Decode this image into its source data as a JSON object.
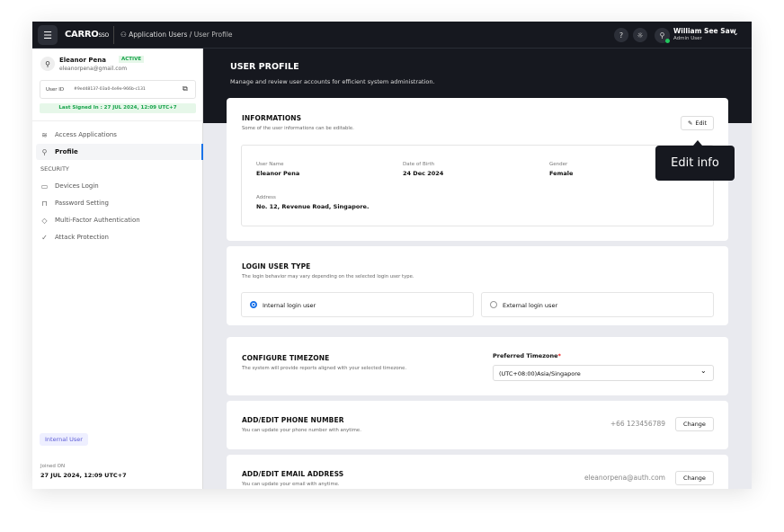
{
  "header": {
    "brand": "CARRO",
    "brand_suffix": "SSO",
    "breadcrumb": [
      "Application Users",
      "User Profile"
    ],
    "user_name": "William See Saw",
    "user_role": "Admin User",
    "online_color": "#22c55e"
  },
  "sidebar": {
    "name": "Eleanor Pena",
    "status": "ACTIVE",
    "email": "eleanorpena@gmail.com",
    "user_id_label": "User ID",
    "user_id": "#9ed48137-03a0-4e9e-966b-c131",
    "last_signed": "Last Signed In : 27 JUL 2024, 12:09 UTC+7",
    "items": [
      {
        "label": "Access Applications",
        "icon": "layers-icon"
      },
      {
        "label": "Profile",
        "icon": "user-icon",
        "active": true
      }
    ],
    "section": "SECURITY",
    "security_items": [
      {
        "label": "Devices Login",
        "icon": "laptop-icon"
      },
      {
        "label": "Password Setting",
        "icon": "lock-icon"
      },
      {
        "label": "Multi-Factor Authentication",
        "icon": "shield-icon"
      },
      {
        "label": "Attack Protection",
        "icon": "shield-check-icon"
      }
    ],
    "user_type": "Internal User",
    "joined_label": "Joined ON",
    "joined": "27 JUL 2024, 12:09 UTC+7"
  },
  "page": {
    "title": "USER PROFILE",
    "subtitle": "Manage and review user accounts for efficient system administration."
  },
  "info": {
    "title": "INFORMATIONS",
    "subtitle": "Some of the user informations can be editable.",
    "edit": "Edit",
    "tooltip": "Edit info",
    "fields": [
      {
        "label": "User Name",
        "value": "Eleanor Pena"
      },
      {
        "label": "Date of Birth",
        "value": "24 Dec 2024"
      },
      {
        "label": "Gender",
        "value": "Female"
      },
      {
        "label": "Address",
        "value": "No. 12, Revenue Road, Singapore."
      }
    ]
  },
  "login": {
    "title": "LOGIN USER TYPE",
    "subtitle": "The login behavior may vary depending on the selected login user type.",
    "options": [
      "Internal login user",
      "External login user"
    ],
    "selected": "Internal login user"
  },
  "timezone": {
    "title": "CONFIGURE TIMEZONE",
    "subtitle": "The system will provide reports aligned with your selected timezone.",
    "label": "Preferred Timezone",
    "required": "*",
    "value": "(UTC+08:00)Asia/Singapore"
  },
  "phone": {
    "title": "ADD/EDIT PHONE NUMBER",
    "subtitle": "You can update your phone number with anytime.",
    "value": "+66 123456789",
    "button": "Change"
  },
  "email": {
    "title": "ADD/EDIT EMAIL ADDRESS",
    "subtitle": "You can update your email with anytime.",
    "value": "eleanorpena@auth.com",
    "button": "Change"
  }
}
